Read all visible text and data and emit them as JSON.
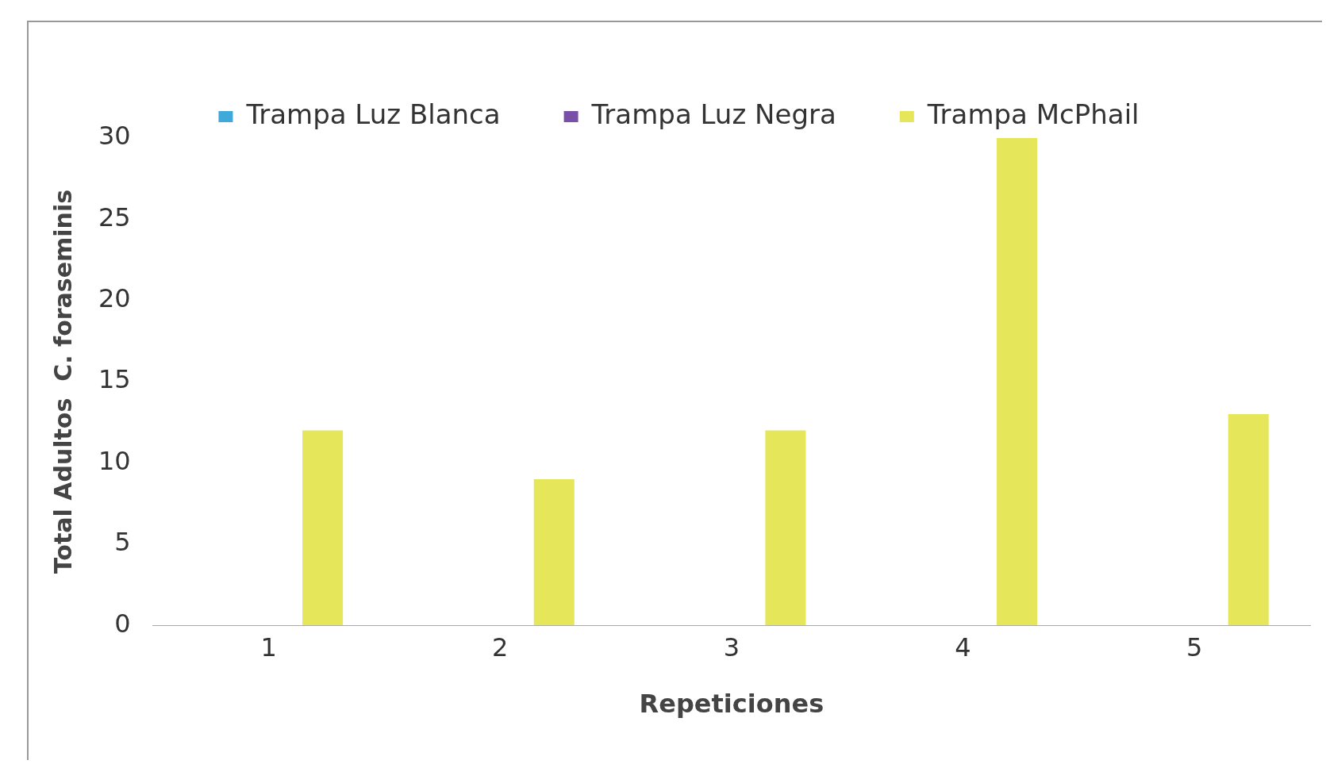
{
  "chart_data": {
    "type": "bar",
    "xlabel": "Repeticiones",
    "ylabel": "Total Adultos  C. foraseminis",
    "categories": [
      "1",
      "2",
      "3",
      "4",
      "5"
    ],
    "series": [
      {
        "name": "Trampa Luz Blanca",
        "color": "#3fa9d9",
        "values": [
          0,
          0,
          0,
          0,
          0
        ]
      },
      {
        "name": "Trampa Luz Negra",
        "color": "#7a4fa8",
        "values": [
          0,
          0,
          0,
          0,
          0
        ]
      },
      {
        "name": "Trampa McPhail",
        "color": "#e6e65a",
        "values": [
          12,
          9,
          12,
          30,
          13
        ]
      }
    ],
    "ylim": [
      0,
      30
    ],
    "yticks": [
      0,
      5,
      10,
      15,
      20,
      25,
      30
    ],
    "grid": false,
    "legend": "top"
  }
}
